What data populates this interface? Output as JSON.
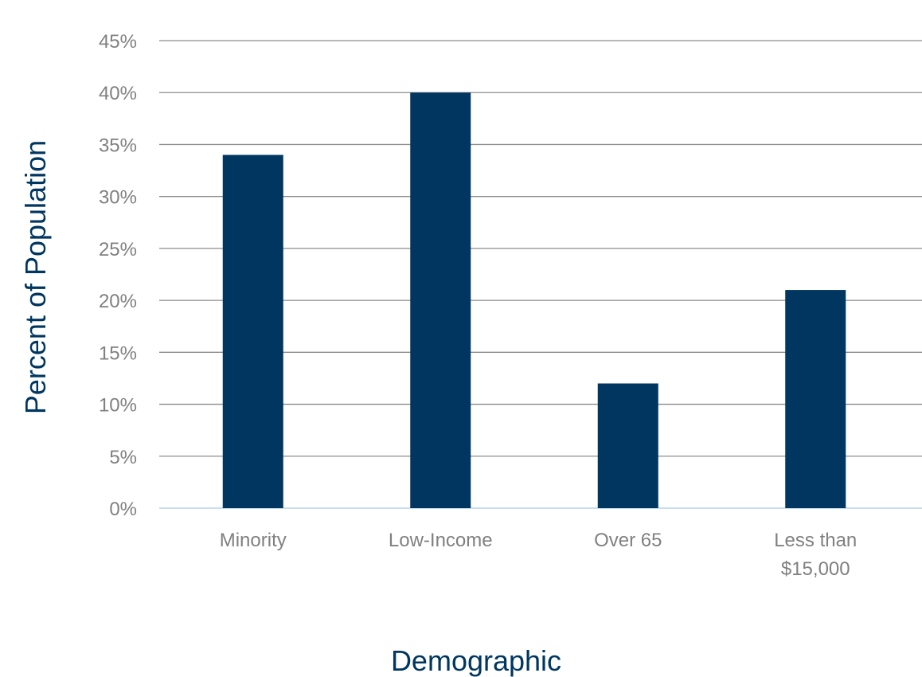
{
  "chart_data": {
    "type": "bar",
    "categories": [
      [
        "Minority"
      ],
      [
        "Low-Income"
      ],
      [
        "Over 65"
      ],
      [
        "Less than",
        "$15,000"
      ]
    ],
    "values": [
      34,
      40,
      12,
      21
    ],
    "unit": "%",
    "xlabel": "Demographic",
    "ylabel": "Percent of Population",
    "ylim": [
      0,
      45
    ],
    "yticks": [
      "0%",
      "5%",
      "10%",
      "15%",
      "20%",
      "25%",
      "30%",
      "35%",
      "40%",
      "45%"
    ],
    "grid": true,
    "legend": "none",
    "colors": {
      "bar": "#003660",
      "gridline": "#8c8c8c",
      "baseline": "#c6dff2",
      "tick_text": "#808080",
      "axis_title": "#003660"
    }
  }
}
